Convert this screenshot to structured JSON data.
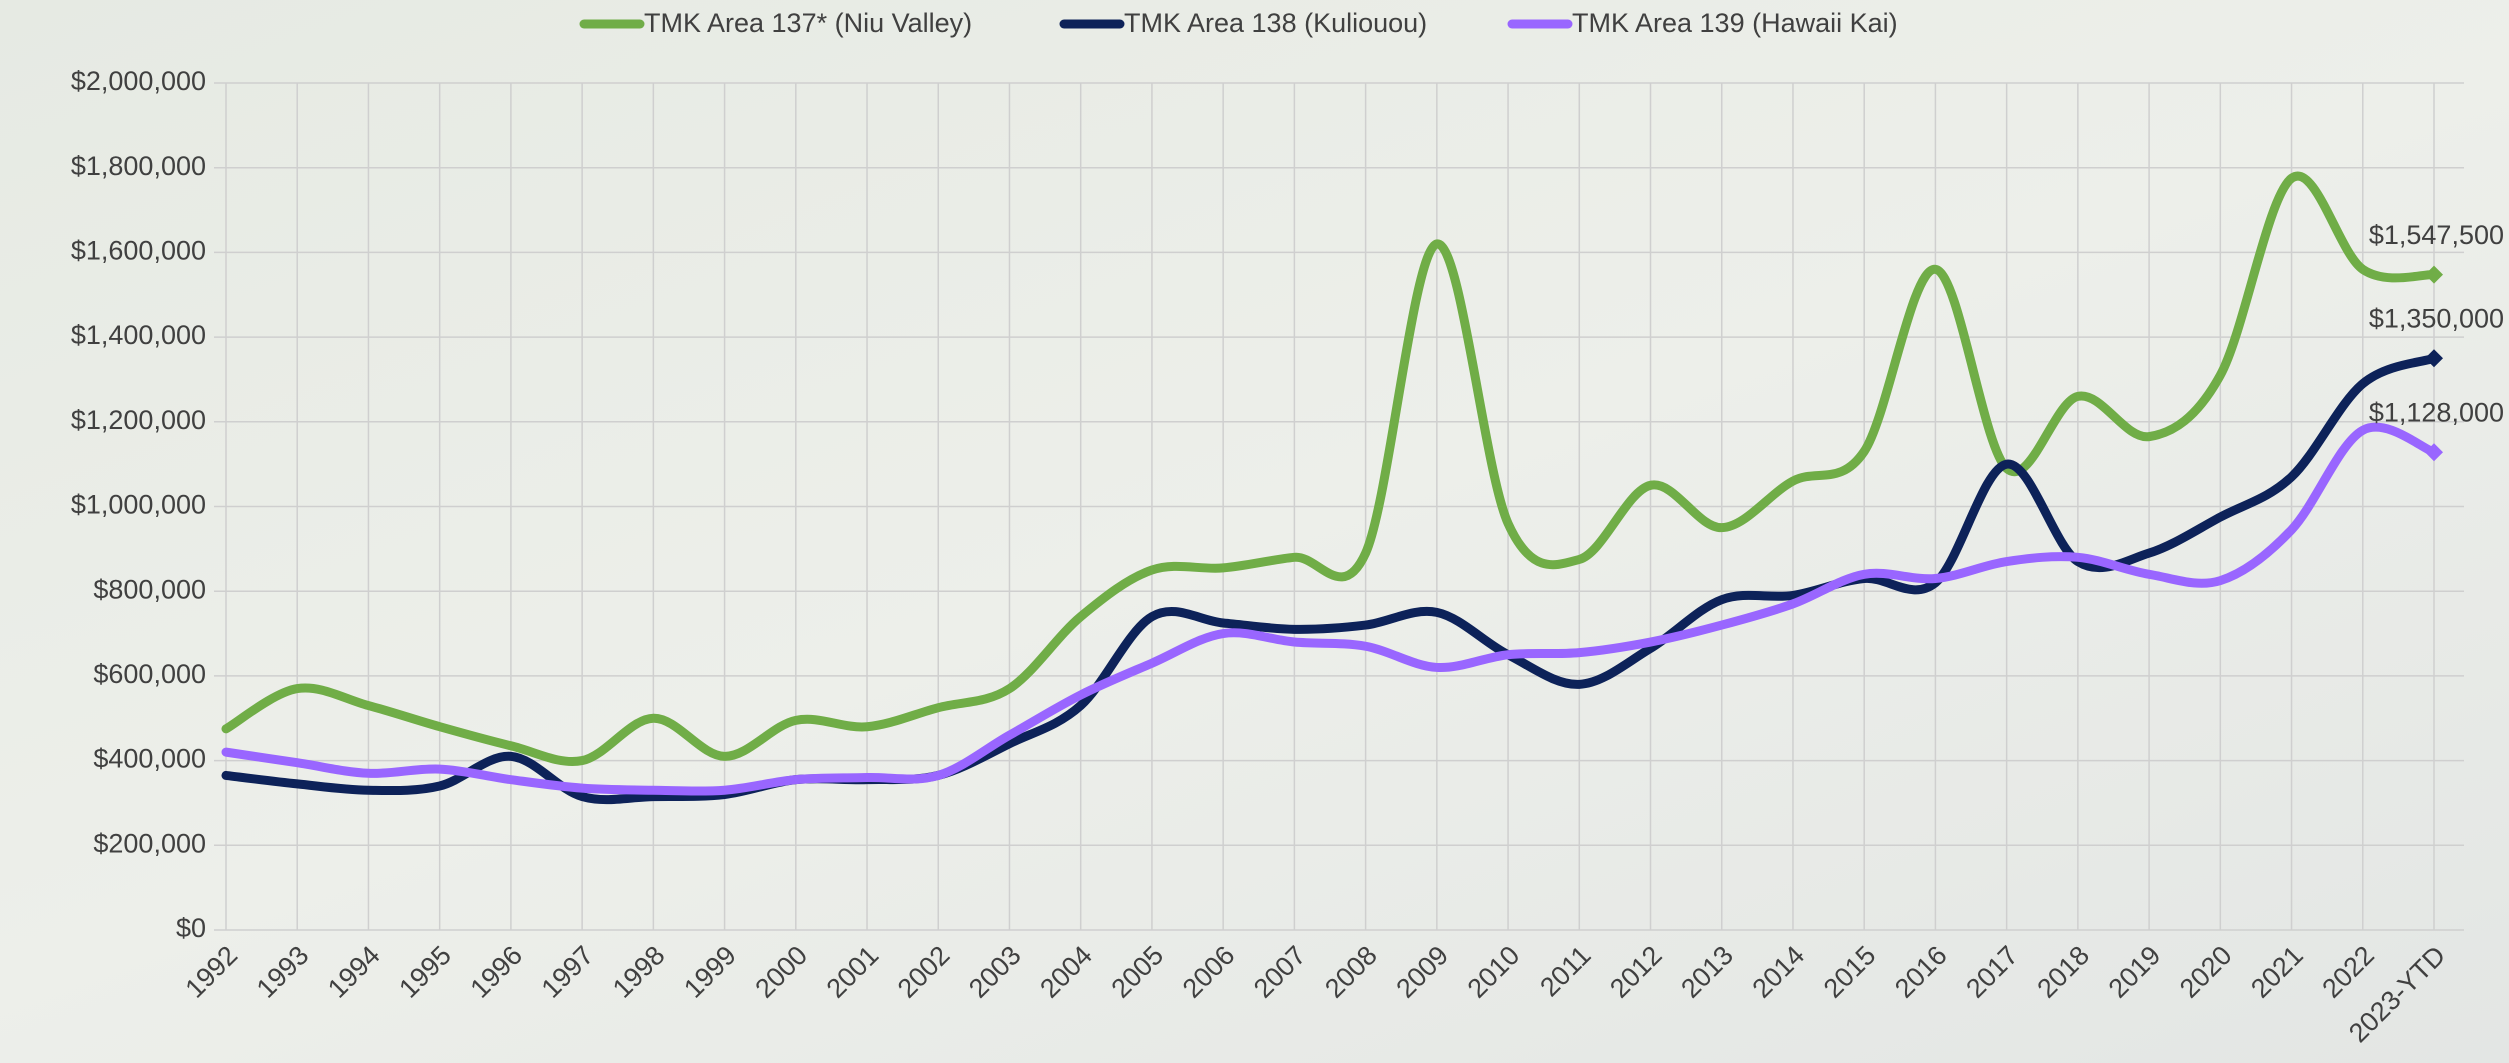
{
  "chart_data": {
    "type": "line",
    "categories": [
      "1992",
      "1993",
      "1994",
      "1995",
      "1996",
      "1997",
      "1998",
      "1999",
      "2000",
      "2001",
      "2002",
      "2003",
      "2004",
      "2005",
      "2006",
      "2007",
      "2008",
      "2009",
      "2010",
      "2011",
      "2012",
      "2013",
      "2014",
      "2015",
      "2016",
      "2017",
      "2018",
      "2019",
      "2020",
      "2021",
      "2022",
      "2023-YTD"
    ],
    "series": [
      {
        "name": "TMK Area 137* (Niu Valley)",
        "color": "#70ad47",
        "values": [
          475000,
          570000,
          530000,
          480000,
          435000,
          400000,
          500000,
          410000,
          495000,
          480000,
          525000,
          570000,
          740000,
          850000,
          855000,
          880000,
          890000,
          1620000,
          960000,
          875000,
          1050000,
          950000,
          1060000,
          1130000,
          1560000,
          1090000,
          1260000,
          1165000,
          1310000,
          1775000,
          1560000,
          1547500
        ],
        "value_labels": [
          null,
          null,
          null,
          null,
          null,
          null,
          null,
          null,
          null,
          null,
          null,
          null,
          null,
          null,
          null,
          null,
          null,
          null,
          null,
          null,
          null,
          null,
          null,
          null,
          null,
          null,
          null,
          null,
          null,
          null,
          null,
          "$1,547,500"
        ]
      },
      {
        "name": "TMK Area 138 (Kuliouou)",
        "color": "#0d2259",
        "values": [
          365000,
          345000,
          330000,
          340000,
          410000,
          315000,
          315000,
          320000,
          355000,
          355000,
          365000,
          440000,
          530000,
          740000,
          725000,
          710000,
          720000,
          750000,
          650000,
          580000,
          665000,
          780000,
          790000,
          830000,
          820000,
          1100000,
          870000,
          890000,
          975000,
          1070000,
          1290000,
          1350000
        ],
        "value_labels": [
          null,
          null,
          null,
          null,
          null,
          null,
          null,
          null,
          null,
          null,
          null,
          null,
          null,
          null,
          null,
          null,
          null,
          null,
          null,
          null,
          null,
          null,
          null,
          null,
          null,
          null,
          null,
          null,
          null,
          null,
          null,
          "$1,350,000"
        ]
      },
      {
        "name": "TMK Area 139 (Hawaii Kai)",
        "color": "#9966ff",
        "values": [
          420000,
          395000,
          370000,
          380000,
          355000,
          335000,
          330000,
          330000,
          355000,
          360000,
          365000,
          460000,
          555000,
          630000,
          700000,
          680000,
          670000,
          620000,
          650000,
          655000,
          680000,
          720000,
          770000,
          840000,
          830000,
          870000,
          880000,
          840000,
          825000,
          945000,
          1180000,
          1128000
        ],
        "value_labels": [
          null,
          null,
          null,
          null,
          null,
          null,
          null,
          null,
          null,
          null,
          null,
          null,
          null,
          null,
          null,
          null,
          null,
          null,
          null,
          null,
          null,
          null,
          null,
          null,
          null,
          null,
          null,
          null,
          null,
          null,
          null,
          "$1,128,000"
        ]
      }
    ],
    "ylim": [
      0,
      2000000
    ],
    "yticks": [
      {
        "value": 0,
        "label": "$0"
      },
      {
        "value": 200000,
        "label": "$200,000"
      },
      {
        "value": 400000,
        "label": "$400,000"
      },
      {
        "value": 600000,
        "label": "$600,000"
      },
      {
        "value": 800000,
        "label": "$800,000"
      },
      {
        "value": 1000000,
        "label": "$1,000,000"
      },
      {
        "value": 1200000,
        "label": "$1,200,000"
      },
      {
        "value": 1400000,
        "label": "$1,400,000"
      },
      {
        "value": 1600000,
        "label": "$1,600,000"
      },
      {
        "value": 1800000,
        "label": "$1,800,000"
      },
      {
        "value": 2000000,
        "label": "$2,000,000"
      }
    ],
    "grid": true,
    "legend": "top"
  }
}
